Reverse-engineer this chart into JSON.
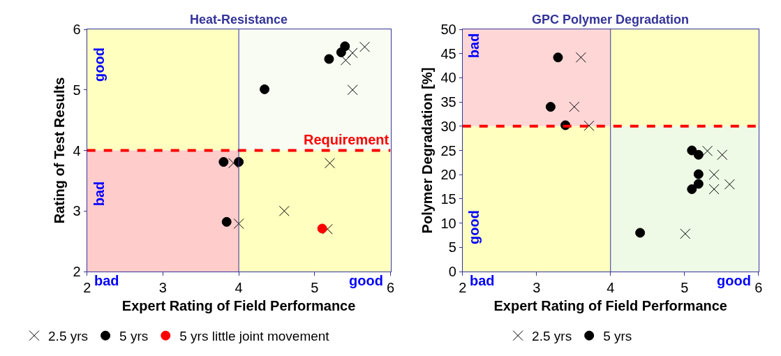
{
  "chart_data": [
    {
      "type": "scatter",
      "title": "Heat-Resistance",
      "xlabel": "Expert Rating of Field Performance",
      "ylabel": "Rating of Test Results",
      "xlim": [
        2,
        6
      ],
      "xticks": [
        2,
        3,
        4,
        5,
        6
      ],
      "ylim": [
        2,
        6
      ],
      "yticks": [
        2,
        3,
        4,
        5,
        6
      ],
      "grid": false,
      "legend": "bottom",
      "series": [
        {
          "name": "2.5 yrs",
          "color": "#000000",
          "marker": "cross",
          "x": [
            5.66,
            5.5,
            5.41,
            5.5,
            5.2,
            3.93,
            4.6,
            4.0,
            5.17
          ],
          "values": [
            5.71,
            5.61,
            5.49,
            5.0,
            3.79,
            3.79,
            3.0,
            2.79,
            2.7
          ]
        },
        {
          "name": "5 yrs",
          "color": "#000000",
          "marker": "circle",
          "x": [
            5.4,
            5.35,
            5.19,
            4.34,
            3.8,
            4.0,
            3.84
          ],
          "values": [
            5.72,
            5.62,
            5.51,
            5.01,
            3.81,
            3.81,
            2.82
          ]
        },
        {
          "name": "5 yrs little joint movement",
          "color": "#ff0000",
          "marker": "circle",
          "x": [
            5.1
          ],
          "values": [
            2.71
          ]
        }
      ],
      "ref_lines": [
        {
          "axis": "y",
          "value": 4,
          "label": "Requirement",
          "color": "#ff0000",
          "line_style": "dashed"
        },
        {
          "axis": "x",
          "value": 4,
          "color": "#333399",
          "line_style": "solid"
        }
      ],
      "annotations": [
        "good",
        "bad",
        "bad",
        "good"
      ]
    },
    {
      "type": "scatter",
      "title": "GPC Polymer Degradation",
      "xlabel": "Expert Rating of Field Performance",
      "ylabel": "Polymer Degradation [%]",
      "xlim": [
        2,
        6
      ],
      "xticks": [
        2,
        3,
        4,
        5,
        6
      ],
      "ylim": [
        0,
        50
      ],
      "yticks": [
        0,
        5,
        10,
        15,
        20,
        25,
        30,
        35,
        40,
        45,
        50
      ],
      "grid": false,
      "legend": "bottom",
      "series": [
        {
          "name": "2.5 yrs",
          "color": "#000000",
          "marker": "cross",
          "x": [
            3.6,
            3.51,
            3.71,
            5.31,
            5.51,
            5.4,
            5.4,
            5.61,
            5.01
          ],
          "values": [
            44.2,
            34.0,
            30.1,
            24.9,
            24.1,
            20.0,
            17.0,
            18.0,
            7.8
          ]
        },
        {
          "name": "5 yrs",
          "color": "#000000",
          "marker": "circle",
          "x": [
            3.29,
            3.19,
            3.39,
            5.1,
            5.19,
            5.19,
            5.19,
            5.1,
            4.4
          ],
          "values": [
            44.2,
            34.0,
            30.2,
            25.0,
            24.1,
            20.1,
            18.1,
            17.0,
            8.0
          ]
        }
      ],
      "ref_lines": [
        {
          "axis": "y",
          "value": 30,
          "color": "#ff0000",
          "line_style": "dashed"
        },
        {
          "axis": "x",
          "value": 4,
          "color": "#333399",
          "line_style": "solid"
        }
      ],
      "annotations": [
        "bad",
        "good",
        "bad",
        "good"
      ]
    }
  ]
}
